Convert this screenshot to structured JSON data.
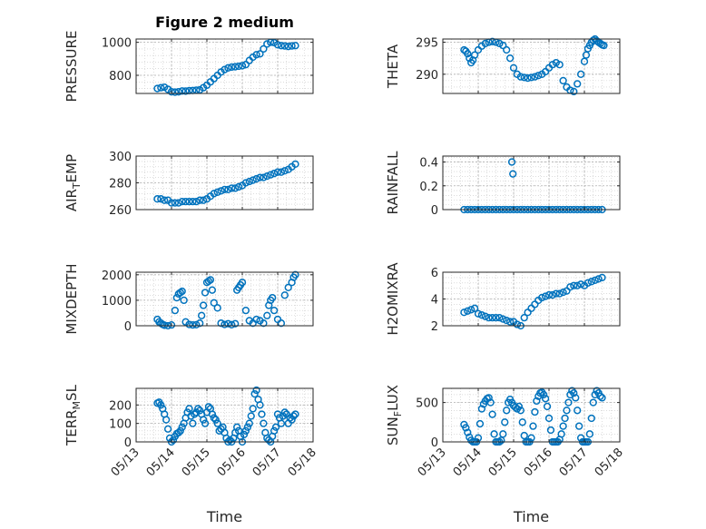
{
  "figure_title": "Figure 2 medium",
  "colors": {
    "marker": "#0072bd",
    "axis": "#262626",
    "grid": "#c8c8c8"
  },
  "chart_data": [
    {
      "type": "scatter",
      "id": "pressure",
      "title": "Figure 2 medium",
      "ylabel": "PRESSURE",
      "ylabel_main": "PRESSURE",
      "ylabel_sub": "",
      "ylabel_tail": "",
      "ylim": [
        690,
        1020
      ],
      "yticks": [
        800,
        1000
      ],
      "ytick_labels": [
        "800",
        "1000"
      ],
      "xlim": [
        0,
        5
      ],
      "xticks": [
        0,
        1,
        2,
        3,
        4,
        5
      ],
      "xtick_labels": [
        "05/13",
        "05/14",
        "05/15",
        "05/16",
        "05/17",
        "05/18"
      ],
      "show_xticklabels": false,
      "xlabel": "",
      "grid": true,
      "minor_grid": true,
      "x": [
        0.6,
        0.7,
        0.8,
        0.9,
        1.0,
        1.1,
        1.2,
        1.3,
        1.4,
        1.5,
        1.6,
        1.7,
        1.8,
        1.9,
        2.0,
        2.1,
        2.2,
        2.3,
        2.4,
        2.5,
        2.6,
        2.7,
        2.8,
        2.9,
        3.0,
        3.1,
        3.2,
        3.3,
        3.4,
        3.5,
        3.6,
        3.7,
        3.8,
        3.9,
        4.0,
        4.1,
        4.2,
        4.3,
        4.4,
        4.5
      ],
      "y": [
        720,
        725,
        728,
        715,
        700,
        698,
        700,
        705,
        704,
        707,
        708,
        710,
        712,
        725,
        740,
        760,
        780,
        800,
        820,
        835,
        845,
        850,
        852,
        855,
        858,
        865,
        890,
        910,
        925,
        930,
        960,
        990,
        1000,
        998,
        985,
        980,
        978,
        975,
        978,
        980
      ]
    },
    {
      "type": "scatter",
      "id": "theta",
      "ylabel": "THETA",
      "ylabel_main": "THETA",
      "ylabel_sub": "",
      "ylabel_tail": "",
      "ylim": [
        287,
        295.5
      ],
      "yticks": [
        290,
        295
      ],
      "ytick_labels": [
        "290",
        "295"
      ],
      "xlim": [
        0,
        5
      ],
      "xticks": [
        0,
        1,
        2,
        3,
        4,
        5
      ],
      "xtick_labels": [
        "05/13",
        "05/14",
        "05/15",
        "05/16",
        "05/17",
        "05/18"
      ],
      "show_xticklabels": false,
      "xlabel": "",
      "grid": true,
      "minor_grid": true,
      "x": [
        0.6,
        0.65,
        0.7,
        0.75,
        0.8,
        0.85,
        0.9,
        1.0,
        1.1,
        1.2,
        1.3,
        1.4,
        1.5,
        1.6,
        1.7,
        1.8,
        1.9,
        2.0,
        2.1,
        2.2,
        2.3,
        2.4,
        2.5,
        2.6,
        2.7,
        2.8,
        2.9,
        3.0,
        3.1,
        3.2,
        3.3,
        3.4,
        3.5,
        3.6,
        3.7,
        3.8,
        3.9,
        4.0,
        4.05,
        4.1,
        4.15,
        4.2,
        4.25,
        4.3,
        4.35,
        4.4,
        4.45,
        4.5,
        4.55
      ],
      "y": [
        293.8,
        293.6,
        293.2,
        292.5,
        291.8,
        292.2,
        293.0,
        293.8,
        294.4,
        294.8,
        295.0,
        295.1,
        295.0,
        294.8,
        294.5,
        293.8,
        292.5,
        291.0,
        290.0,
        289.6,
        289.5,
        289.4,
        289.5,
        289.6,
        289.8,
        290.0,
        290.4,
        291.0,
        291.5,
        291.8,
        291.5,
        289.0,
        288.0,
        287.5,
        287.3,
        288.5,
        290.0,
        292.0,
        293.0,
        294.0,
        294.5,
        295.0,
        295.3,
        295.5,
        295.2,
        295.0,
        294.8,
        294.6,
        294.5
      ]
    },
    {
      "type": "scatter",
      "id": "air_temp",
      "ylabel": "AIR_TEMP",
      "ylabel_main": "AIR",
      "ylabel_sub": "T",
      "ylabel_tail": "EMP",
      "ylim": [
        260,
        300
      ],
      "yticks": [
        260,
        280,
        300
      ],
      "ytick_labels": [
        "260",
        "280",
        "300"
      ],
      "xlim": [
        0,
        5
      ],
      "xticks": [
        0,
        1,
        2,
        3,
        4,
        5
      ],
      "xtick_labels": [
        "05/13",
        "05/14",
        "05/15",
        "05/16",
        "05/17",
        "05/18"
      ],
      "show_xticklabels": false,
      "xlabel": "",
      "grid": true,
      "minor_grid": true,
      "x": [
        0.6,
        0.7,
        0.8,
        0.9,
        1.0,
        1.1,
        1.2,
        1.3,
        1.4,
        1.5,
        1.6,
        1.7,
        1.8,
        1.9,
        2.0,
        2.1,
        2.2,
        2.3,
        2.4,
        2.5,
        2.6,
        2.7,
        2.8,
        2.9,
        3.0,
        3.1,
        3.2,
        3.3,
        3.4,
        3.5,
        3.6,
        3.7,
        3.8,
        3.9,
        4.0,
        4.1,
        4.2,
        4.3,
        4.4,
        4.5
      ],
      "y": [
        268,
        268,
        267,
        267,
        265,
        265,
        265,
        266,
        266,
        266,
        266,
        266,
        267,
        267,
        268,
        270,
        272,
        273,
        274,
        275,
        275,
        276,
        276,
        277,
        278,
        280,
        281,
        282,
        283,
        284,
        284,
        285,
        286,
        287,
        288,
        288,
        289,
        290,
        292,
        294
      ]
    },
    {
      "type": "scatter",
      "id": "rainfall",
      "ylabel": "RAINFALL",
      "ylabel_main": "RAINFALL",
      "ylabel_sub": "",
      "ylabel_tail": "",
      "ylim": [
        0,
        0.45
      ],
      "yticks": [
        0,
        0.2,
        0.4
      ],
      "ytick_labels": [
        "0",
        "0.2",
        "0.4"
      ],
      "xlim": [
        0,
        5
      ],
      "xticks": [
        0,
        1,
        2,
        3,
        4,
        5
      ],
      "xtick_labels": [
        "05/13",
        "05/14",
        "05/15",
        "05/16",
        "05/17",
        "05/18"
      ],
      "show_xticklabels": false,
      "xlabel": "",
      "grid": true,
      "minor_grid": true,
      "x": [
        0.6,
        0.7,
        0.8,
        0.9,
        1.0,
        1.1,
        1.2,
        1.3,
        1.4,
        1.5,
        1.6,
        1.7,
        1.8,
        1.9,
        1.95,
        1.98,
        2.0,
        2.1,
        2.2,
        2.3,
        2.4,
        2.5,
        2.6,
        2.7,
        2.8,
        2.9,
        3.0,
        3.1,
        3.2,
        3.3,
        3.4,
        3.5,
        3.6,
        3.7,
        3.8,
        3.9,
        4.0,
        4.1,
        4.2,
        4.3,
        4.4,
        4.5
      ],
      "y": [
        0,
        0,
        0,
        0,
        0,
        0,
        0,
        0,
        0,
        0,
        0,
        0,
        0,
        0,
        0.4,
        0.3,
        0,
        0,
        0,
        0,
        0,
        0,
        0,
        0,
        0,
        0,
        0,
        0,
        0,
        0,
        0,
        0,
        0,
        0,
        0,
        0,
        0,
        0,
        0,
        0,
        0,
        0
      ]
    },
    {
      "type": "scatter",
      "id": "mixdepth",
      "ylabel": "MIXDEPTH",
      "ylabel_main": "MIXDEPTH",
      "ylabel_sub": "",
      "ylabel_tail": "",
      "ylim": [
        0,
        2100
      ],
      "yticks": [
        0,
        1000,
        2000
      ],
      "ytick_labels": [
        "0",
        "1000",
        "2000"
      ],
      "xlim": [
        0,
        5
      ],
      "xticks": [
        0,
        1,
        2,
        3,
        4,
        5
      ],
      "xtick_labels": [
        "05/13",
        "05/14",
        "05/15",
        "05/16",
        "05/17",
        "05/18"
      ],
      "show_xticklabels": false,
      "xlabel": "",
      "grid": true,
      "minor_grid": true,
      "x": [
        0.6,
        0.65,
        0.7,
        0.75,
        0.8,
        0.9,
        1.0,
        1.1,
        1.15,
        1.2,
        1.25,
        1.3,
        1.35,
        1.4,
        1.5,
        1.6,
        1.7,
        1.8,
        1.85,
        1.9,
        1.95,
        2.0,
        2.05,
        2.1,
        2.15,
        2.2,
        2.3,
        2.4,
        2.5,
        2.6,
        2.7,
        2.8,
        2.85,
        2.9,
        2.95,
        3.0,
        3.1,
        3.2,
        3.3,
        3.4,
        3.5,
        3.6,
        3.7,
        3.75,
        3.8,
        3.85,
        3.9,
        4.0,
        4.1,
        4.2,
        4.3,
        4.4,
        4.45,
        4.5
      ],
      "y": [
        250,
        150,
        100,
        50,
        20,
        0,
        30,
        600,
        1100,
        1250,
        1300,
        1350,
        1000,
        150,
        50,
        30,
        40,
        100,
        400,
        800,
        1300,
        1700,
        1750,
        1800,
        1400,
        900,
        700,
        100,
        50,
        80,
        40,
        80,
        1400,
        1500,
        1600,
        1700,
        600,
        200,
        100,
        250,
        200,
        100,
        400,
        800,
        1000,
        1100,
        600,
        250,
        100,
        1200,
        1500,
        1700,
        1900,
        2000
      ]
    },
    {
      "type": "scatter",
      "id": "h2omixra",
      "ylabel": "H2OMIXRA",
      "ylabel_main": "H2OMIXRA",
      "ylabel_sub": "",
      "ylabel_tail": "",
      "ylim": [
        2,
        6
      ],
      "yticks": [
        2,
        4,
        6
      ],
      "ytick_labels": [
        "2",
        "4",
        "6"
      ],
      "xlim": [
        0,
        5
      ],
      "xticks": [
        0,
        1,
        2,
        3,
        4,
        5
      ],
      "xtick_labels": [
        "05/13",
        "05/14",
        "05/15",
        "05/16",
        "05/17",
        "05/18"
      ],
      "show_xticklabels": false,
      "xlabel": "",
      "grid": true,
      "minor_grid": true,
      "x": [
        0.6,
        0.7,
        0.8,
        0.9,
        1.0,
        1.1,
        1.2,
        1.3,
        1.4,
        1.5,
        1.6,
        1.7,
        1.8,
        1.9,
        2.0,
        2.1,
        2.2,
        2.3,
        2.4,
        2.5,
        2.6,
        2.7,
        2.8,
        2.9,
        3.0,
        3.1,
        3.2,
        3.3,
        3.4,
        3.5,
        3.6,
        3.7,
        3.8,
        3.9,
        4.0,
        4.1,
        4.2,
        4.3,
        4.4,
        4.5
      ],
      "y": [
        3.0,
        3.1,
        3.2,
        3.3,
        2.9,
        2.8,
        2.7,
        2.6,
        2.6,
        2.6,
        2.6,
        2.5,
        2.4,
        2.3,
        2.3,
        2.1,
        2.0,
        2.6,
        3.0,
        3.3,
        3.6,
        3.9,
        4.1,
        4.2,
        4.3,
        4.3,
        4.4,
        4.4,
        4.5,
        4.6,
        4.9,
        5.0,
        5.0,
        5.1,
        5.0,
        5.2,
        5.3,
        5.4,
        5.5,
        5.6
      ]
    },
    {
      "type": "scatter",
      "id": "terr_msl",
      "ylabel": "TERR_MSL",
      "ylabel_main": "TERR",
      "ylabel_sub": "M",
      "ylabel_tail": "SL",
      "ylim": [
        0,
        290
      ],
      "yticks": [
        0,
        100,
        200
      ],
      "ytick_labels": [
        "0",
        "100",
        "200"
      ],
      "xlim": [
        0,
        5
      ],
      "xticks": [
        0,
        1,
        2,
        3,
        4,
        5
      ],
      "xtick_labels": [
        "05/13",
        "05/14",
        "05/15",
        "05/16",
        "05/17",
        "05/18"
      ],
      "show_xticklabels": true,
      "xlabel": "Time",
      "grid": true,
      "minor_grid": true,
      "x": [
        0.6,
        0.65,
        0.7,
        0.75,
        0.8,
        0.85,
        0.9,
        0.95,
        1.0,
        1.05,
        1.1,
        1.15,
        1.2,
        1.25,
        1.3,
        1.35,
        1.4,
        1.45,
        1.5,
        1.55,
        1.6,
        1.65,
        1.7,
        1.75,
        1.8,
        1.85,
        1.9,
        1.95,
        2.0,
        2.05,
        2.1,
        2.15,
        2.2,
        2.25,
        2.3,
        2.35,
        2.4,
        2.45,
        2.5,
        2.55,
        2.6,
        2.65,
        2.7,
        2.75,
        2.8,
        2.85,
        2.9,
        2.95,
        3.0,
        3.05,
        3.1,
        3.15,
        3.2,
        3.25,
        3.3,
        3.35,
        3.4,
        3.45,
        3.5,
        3.55,
        3.6,
        3.65,
        3.7,
        3.75,
        3.8,
        3.85,
        3.9,
        3.95,
        4.0,
        4.05,
        4.1,
        4.15,
        4.2,
        4.25,
        4.3,
        4.35,
        4.4,
        4.45,
        4.5
      ],
      "y": [
        210,
        215,
        200,
        180,
        150,
        120,
        70,
        20,
        0,
        10,
        30,
        45,
        50,
        60,
        80,
        100,
        130,
        160,
        180,
        140,
        100,
        150,
        160,
        180,
        170,
        150,
        120,
        100,
        160,
        190,
        180,
        150,
        130,
        120,
        100,
        60,
        70,
        80,
        50,
        20,
        0,
        10,
        0,
        20,
        50,
        80,
        60,
        30,
        0,
        40,
        60,
        80,
        100,
        140,
        180,
        260,
        280,
        230,
        200,
        150,
        100,
        50,
        20,
        10,
        0,
        30,
        60,
        80,
        150,
        130,
        100,
        140,
        160,
        150,
        100,
        130,
        120,
        140,
        150
      ]
    },
    {
      "type": "scatter",
      "id": "sun_flux",
      "ylabel": "SUN_FLUX",
      "ylabel_main": "SUN",
      "ylabel_sub": "F",
      "ylabel_tail": "LUX",
      "ylim": [
        0,
        680
      ],
      "yticks": [
        0,
        500
      ],
      "ytick_labels": [
        "0",
        "500"
      ],
      "xlim": [
        0,
        5
      ],
      "xticks": [
        0,
        1,
        2,
        3,
        4,
        5
      ],
      "xtick_labels": [
        "05/13",
        "05/14",
        "05/15",
        "05/16",
        "05/17",
        "05/18"
      ],
      "show_xticklabels": true,
      "xlabel": "Time",
      "grid": true,
      "minor_grid": true,
      "x": [
        0.6,
        0.65,
        0.7,
        0.75,
        0.8,
        0.85,
        0.9,
        0.95,
        1.0,
        1.05,
        1.1,
        1.15,
        1.2,
        1.25,
        1.3,
        1.35,
        1.4,
        1.45,
        1.5,
        1.55,
        1.6,
        1.65,
        1.7,
        1.75,
        1.8,
        1.85,
        1.9,
        1.95,
        2.0,
        2.05,
        2.1,
        2.15,
        2.2,
        2.25,
        2.3,
        2.35,
        2.4,
        2.45,
        2.5,
        2.55,
        2.6,
        2.65,
        2.7,
        2.75,
        2.8,
        2.85,
        2.9,
        2.95,
        3.0,
        3.05,
        3.1,
        3.15,
        3.2,
        3.25,
        3.3,
        3.35,
        3.4,
        3.45,
        3.5,
        3.55,
        3.6,
        3.65,
        3.7,
        3.75,
        3.8,
        3.85,
        3.9,
        3.95,
        4.0,
        4.05,
        4.1,
        4.15,
        4.2,
        4.25,
        4.3,
        4.35,
        4.4,
        4.45,
        4.5
      ],
      "y": [
        220,
        180,
        120,
        60,
        20,
        0,
        0,
        0,
        50,
        230,
        420,
        480,
        520,
        550,
        560,
        500,
        350,
        100,
        0,
        0,
        0,
        20,
        100,
        250,
        400,
        500,
        540,
        500,
        460,
        440,
        420,
        450,
        400,
        250,
        80,
        0,
        0,
        0,
        50,
        200,
        380,
        520,
        580,
        620,
        630,
        600,
        550,
        450,
        300,
        150,
        0,
        0,
        0,
        0,
        30,
        100,
        200,
        300,
        400,
        500,
        600,
        650,
        620,
        560,
        400,
        200,
        50,
        0,
        0,
        0,
        0,
        100,
        300,
        500,
        600,
        650,
        620,
        580,
        560
      ]
    }
  ]
}
